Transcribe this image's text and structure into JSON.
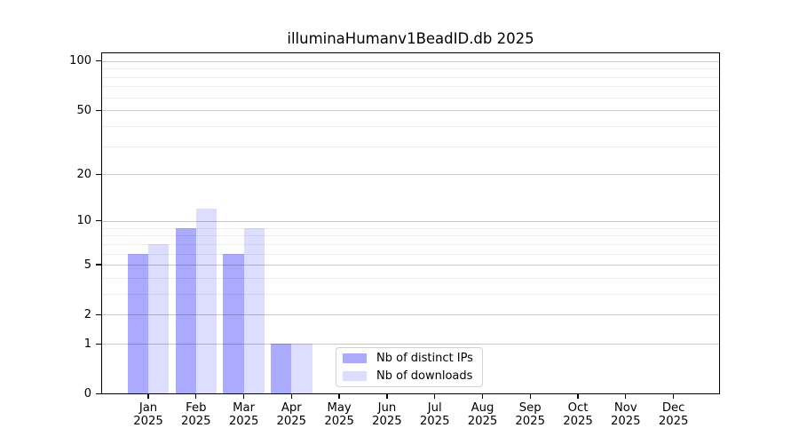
{
  "chart_data": {
    "type": "bar",
    "title": "illuminaHumanv1BeadID.db 2025",
    "categories": [
      "Jan",
      "Feb",
      "Mar",
      "Apr",
      "May",
      "Jun",
      "Jul",
      "Aug",
      "Sep",
      "Oct",
      "Nov",
      "Dec"
    ],
    "x_tick_second_line": "2025",
    "series": [
      {
        "name": "Nb of distinct IPs",
        "color": "#aaaaff",
        "values": [
          6,
          9,
          6,
          1,
          0,
          0,
          0,
          0,
          0,
          0,
          0,
          0
        ]
      },
      {
        "name": "Nb of downloads",
        "color": "#ddddff",
        "values": [
          7,
          12,
          9,
          1,
          0,
          0,
          0,
          0,
          0,
          0,
          0,
          0
        ]
      }
    ],
    "yscale": "log1p",
    "ylim": [
      0,
      113
    ],
    "y_major_ticks": [
      100,
      50,
      20,
      10,
      5,
      2,
      1,
      0
    ],
    "y_minor_ticks": [
      3,
      4,
      6,
      7,
      8,
      9,
      30,
      40,
      60,
      70,
      80,
      90
    ],
    "grid": true,
    "legend": {
      "position": "lower center",
      "entries": [
        "Nb of distinct IPs",
        "Nb of downloads"
      ]
    },
    "colors": {
      "bar_distinct_ips": "#aaaaff",
      "bar_downloads": "#ddddff",
      "spine": "#000000",
      "background": "#ffffff"
    }
  }
}
